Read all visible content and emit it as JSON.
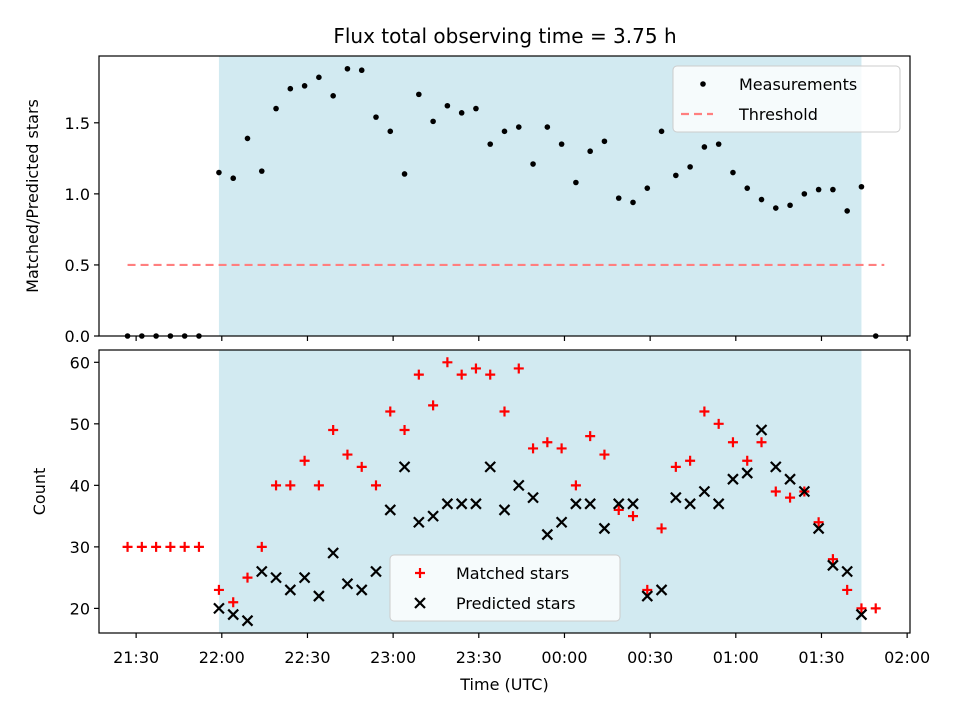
{
  "figure_title": "Flux total observing time = 3.75 h",
  "colors": {
    "shade": "#add8e6",
    "measurement": "#000000",
    "threshold": "#ff7f7f",
    "matched": "#ff0000",
    "predicted": "#000000"
  },
  "chart_data": [
    {
      "type": "scatter",
      "ylabel": "Matched/Predicted stars",
      "xlabel": "",
      "ylim": [
        0,
        1.97
      ],
      "xlim": [
        "21:17",
        "02:01"
      ],
      "yticks": [
        "0.0",
        "0.5",
        "1.0",
        "1.5"
      ],
      "yticks_values": [
        0,
        0.5,
        1.0,
        1.5
      ],
      "shaded_span": [
        "21:59",
        "01:44"
      ],
      "legend": {
        "placement": "upper right",
        "entries": [
          "Measurements",
          "Threshold"
        ]
      },
      "threshold": {
        "name": "Threshold",
        "y": 0.5,
        "x": [
          "21:27",
          "01:52"
        ]
      },
      "series": [
        {
          "name": "Measurements",
          "marker": "dot",
          "x": [
            "21:27",
            "21:32",
            "21:37",
            "21:42",
            "21:47",
            "21:52",
            "21:59",
            "22:04",
            "22:09",
            "22:14",
            "22:19",
            "22:24",
            "22:29",
            "22:34",
            "22:39",
            "22:44",
            "22:49",
            "22:54",
            "22:59",
            "23:04",
            "23:09",
            "23:14",
            "23:19",
            "23:24",
            "23:29",
            "23:34",
            "23:39",
            "23:44",
            "23:49",
            "23:54",
            "23:59",
            "00:04",
            "00:09",
            "00:14",
            "00:19",
            "00:24",
            "00:29",
            "00:34",
            "00:39",
            "00:44",
            "00:49",
            "00:54",
            "00:59",
            "01:04",
            "01:09",
            "01:14",
            "01:19",
            "01:24",
            "01:29",
            "01:34",
            "01:39",
            "01:44",
            "01:49"
          ],
          "values": [
            0,
            0,
            0,
            0,
            0,
            0,
            1.15,
            1.11,
            1.39,
            1.16,
            1.6,
            1.74,
            1.76,
            1.82,
            1.69,
            1.88,
            1.87,
            1.54,
            1.44,
            1.14,
            1.7,
            1.51,
            1.62,
            1.57,
            1.6,
            1.35,
            1.44,
            1.47,
            1.21,
            1.47,
            1.35,
            1.08,
            1.3,
            1.37,
            0.97,
            0.94,
            1.04,
            1.44,
            1.13,
            1.19,
            1.33,
            1.35,
            1.15,
            1.04,
            0.96,
            0.9,
            0.92,
            1.0,
            1.03,
            1.03,
            0.88,
            1.05,
            0
          ]
        }
      ]
    },
    {
      "type": "scatter",
      "ylabel": "Count",
      "xlabel": "Time (UTC)",
      "ylim": [
        16,
        62
      ],
      "xlim": [
        "21:17",
        "02:01"
      ],
      "yticks": [
        "20",
        "30",
        "40",
        "50",
        "60"
      ],
      "yticks_values": [
        20,
        30,
        40,
        50,
        60
      ],
      "xticks": [
        "21:30",
        "22:00",
        "22:30",
        "23:00",
        "23:30",
        "00:00",
        "00:30",
        "01:00",
        "01:30",
        "02:00"
      ],
      "xticks_values": [
        "21:30",
        "22:00",
        "22:30",
        "23:00",
        "23:30",
        "00:00",
        "00:30",
        "01:00",
        "01:30",
        "02:00"
      ],
      "shaded_span": [
        "21:59",
        "01:44"
      ],
      "legend": {
        "placement": "lower center",
        "entries": [
          "Matched stars",
          "Predicted stars"
        ]
      },
      "series": [
        {
          "name": "Matched stars",
          "marker": "plus",
          "x": [
            "21:27",
            "21:32",
            "21:37",
            "21:42",
            "21:47",
            "21:52",
            "21:59",
            "22:04",
            "22:09",
            "22:14",
            "22:19",
            "22:24",
            "22:29",
            "22:34",
            "22:39",
            "22:44",
            "22:49",
            "22:54",
            "22:59",
            "23:04",
            "23:09",
            "23:14",
            "23:19",
            "23:24",
            "23:29",
            "23:34",
            "23:39",
            "23:44",
            "23:49",
            "23:54",
            "23:59",
            "00:04",
            "00:09",
            "00:14",
            "00:19",
            "00:24",
            "00:29",
            "00:34",
            "00:39",
            "00:44",
            "00:49",
            "00:54",
            "00:59",
            "01:04",
            "01:09",
            "01:14",
            "01:19",
            "01:24",
            "01:29",
            "01:34",
            "01:39",
            "01:44",
            "01:49"
          ],
          "values": [
            30,
            30,
            30,
            30,
            30,
            30,
            23,
            21,
            25,
            30,
            40,
            40,
            44,
            40,
            49,
            45,
            43,
            40,
            52,
            49,
            58,
            53,
            60,
            58,
            59,
            58,
            52,
            59,
            46,
            47,
            46,
            40,
            48,
            45,
            36,
            35,
            23,
            33,
            43,
            44,
            52,
            50,
            47,
            44,
            47,
            39,
            38,
            39,
            34,
            28,
            23,
            20,
            20
          ]
        },
        {
          "name": "Predicted stars",
          "marker": "x",
          "x": [
            "21:59",
            "22:04",
            "22:09",
            "22:14",
            "22:19",
            "22:24",
            "22:29",
            "22:34",
            "22:39",
            "22:44",
            "22:49",
            "22:54",
            "22:59",
            "23:04",
            "23:09",
            "23:14",
            "23:19",
            "23:24",
            "23:29",
            "23:34",
            "23:39",
            "23:44",
            "23:49",
            "23:54",
            "23:59",
            "00:04",
            "00:09",
            "00:14",
            "00:19",
            "00:24",
            "00:29",
            "00:34",
            "00:39",
            "00:44",
            "00:49",
            "00:54",
            "00:59",
            "01:04",
            "01:09",
            "01:14",
            "01:19",
            "01:24",
            "01:29",
            "01:34",
            "01:39",
            "01:44"
          ],
          "values": [
            20,
            19,
            18,
            26,
            25,
            23,
            25,
            22,
            29,
            24,
            23,
            26,
            36,
            43,
            34,
            35,
            37,
            37,
            37,
            43,
            36,
            40,
            38,
            32,
            34,
            37,
            37,
            33,
            37,
            37,
            22,
            23,
            38,
            37,
            39,
            37,
            41,
            42,
            49,
            43,
            41,
            39,
            33,
            27,
            26,
            19
          ]
        }
      ]
    }
  ]
}
